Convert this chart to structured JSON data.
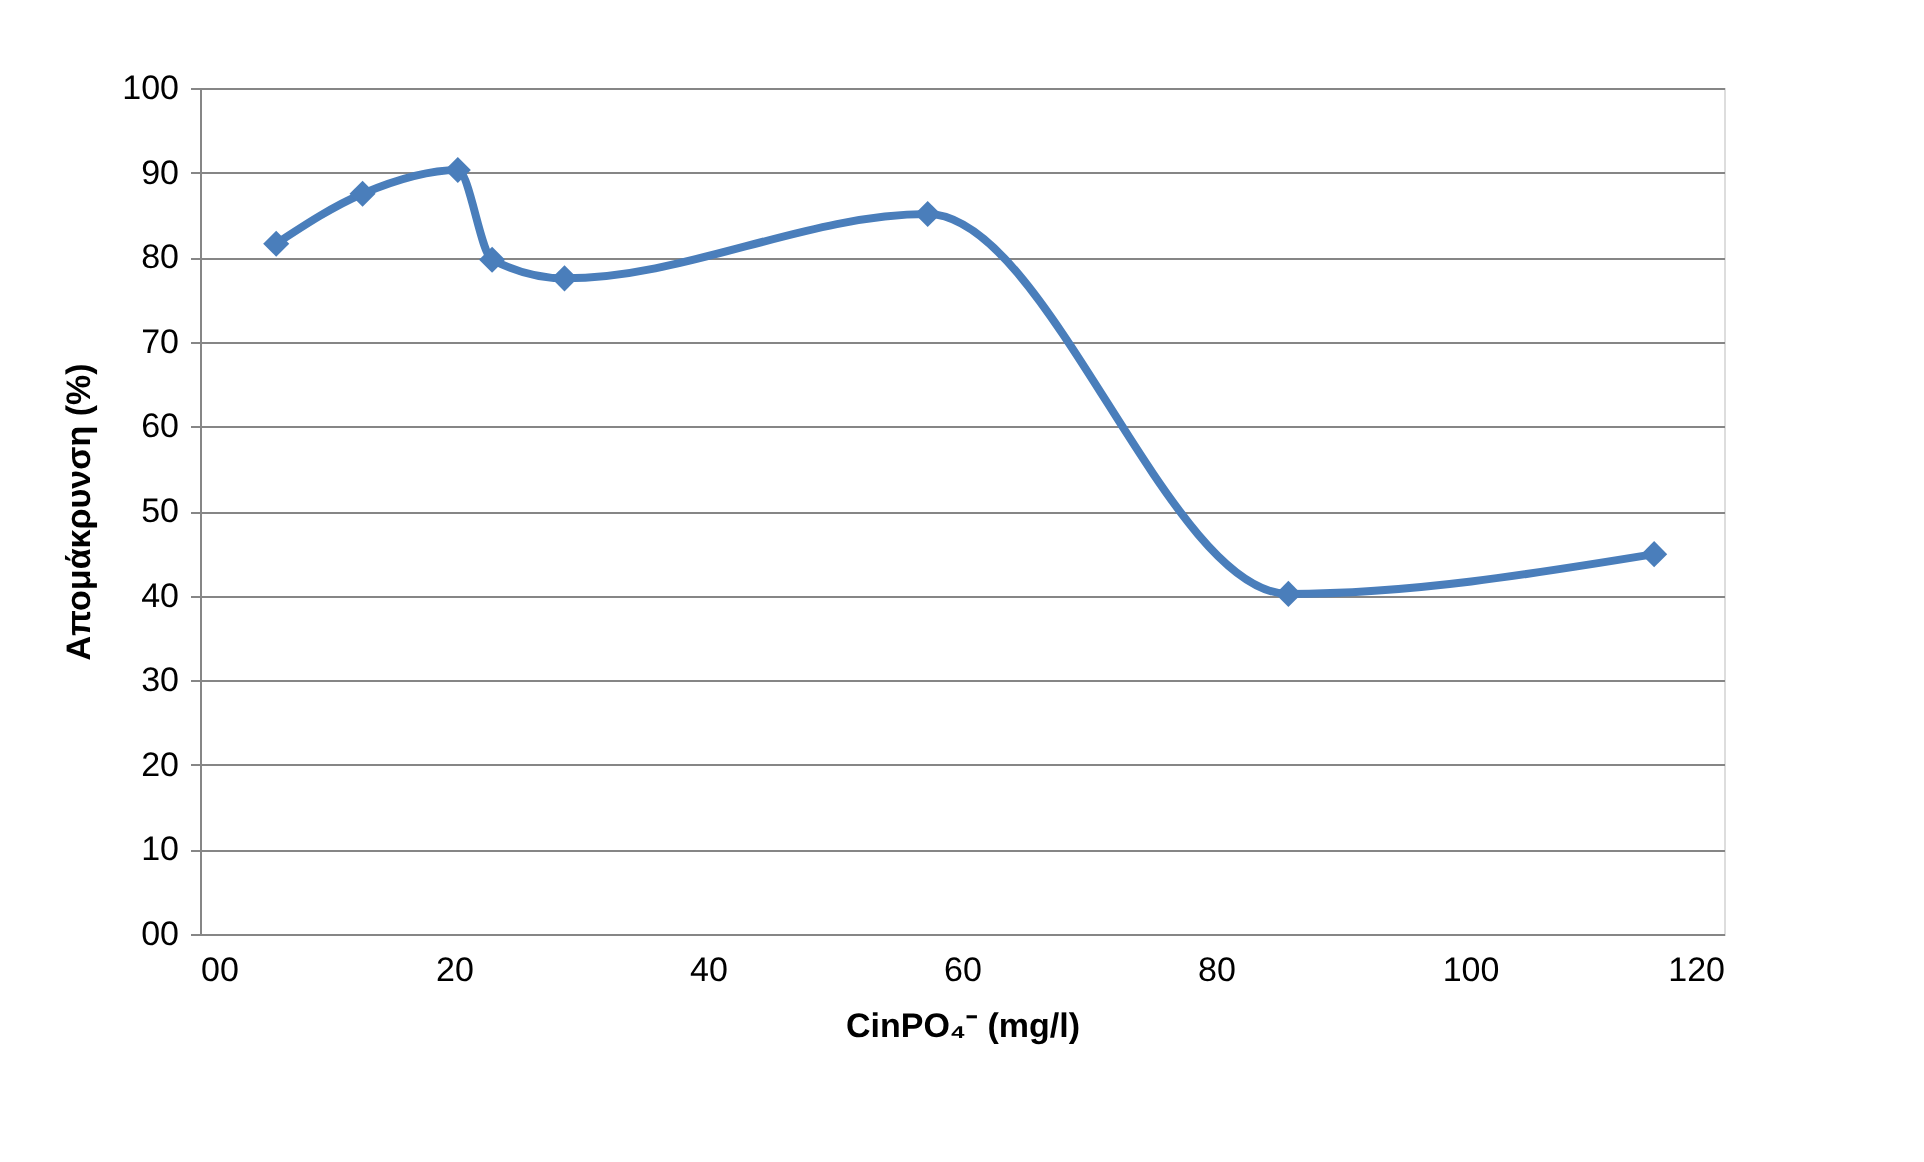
{
  "chart_data": {
    "type": "line",
    "xlabel": "CinPO₄⁻ (mg/l)",
    "ylabel": "Απομάκρυνση (%)",
    "x": [
      6.0,
      12.8,
      20.3,
      23.0,
      28.7,
      57.3,
      85.7,
      114.5
    ],
    "series": [
      {
        "color": "#4a7ebb",
        "values": [
          81.6,
          87.5,
          90.3,
          79.7,
          77.5,
          85.1,
          40.2,
          44.9
        ]
      }
    ],
    "xlim": [
      0,
      120
    ],
    "xticks": [
      {
        "value": 0,
        "label": "00"
      },
      20,
      40,
      60,
      80,
      100,
      120
    ],
    "ylim": [
      0,
      100
    ],
    "yticks": [
      {
        "value": 0,
        "label": "00"
      },
      10,
      20,
      30,
      40,
      50,
      60,
      70,
      80,
      90,
      100
    ],
    "grid": "y",
    "marker": "diamond",
    "line_style": "solid"
  }
}
